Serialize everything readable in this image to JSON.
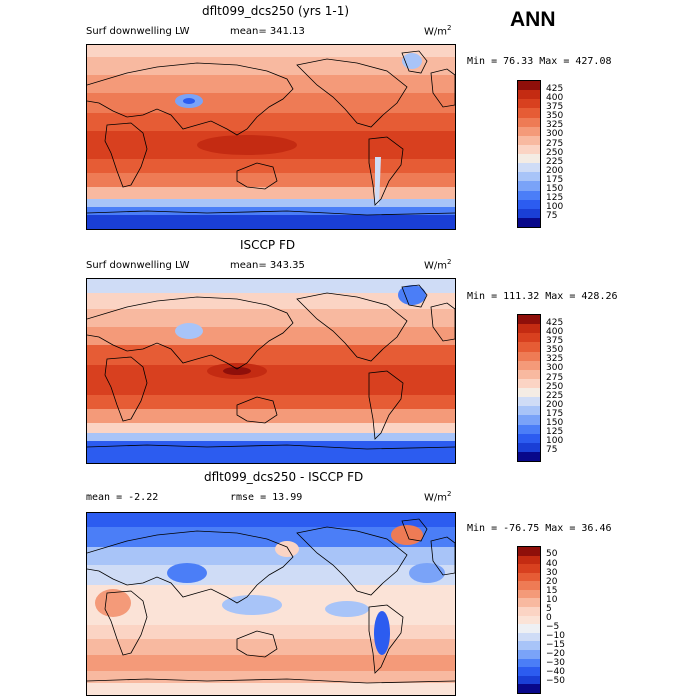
{
  "season": "ANN",
  "colors": {
    "abs_scale": [
      "#08088a",
      "#1a3fd6",
      "#2c5cf0",
      "#4b7ef7",
      "#7aa3f8",
      "#a8c4f8",
      "#cfdcf6",
      "#f4ece4",
      "#fbd4c4",
      "#f8b9a0",
      "#f49a79",
      "#ee7b55",
      "#e65c35",
      "#d8401f",
      "#c42b12",
      "#8f0f0a"
    ],
    "diff_scale": [
      "#08088a",
      "#1a3fd6",
      "#2c5cf0",
      "#4b7ef7",
      "#7aa3f8",
      "#a8c4f8",
      "#cfdcf6",
      "#eef0f4",
      "#fbe3d7",
      "#fbd4c4",
      "#f8b9a0",
      "#f49a79",
      "#ee7b55",
      "#e65c35",
      "#d8401f",
      "#c42b12",
      "#8f0f0a"
    ]
  },
  "panels": [
    {
      "title": "dflt099_dcs250 (yrs 1-1)",
      "left_label": "Surf downwelling LW",
      "middle_label": "mean= 341.13",
      "units": "W/m",
      "units_sup": "2",
      "minmax": "Min =  76.33 Max = 427.08",
      "ticks": [
        "425",
        "400",
        "375",
        "350",
        "325",
        "300",
        "275",
        "250",
        "225",
        "200",
        "175",
        "150",
        "125",
        "100",
        "75"
      ]
    },
    {
      "title": "ISCCP FD",
      "left_label": "Surf downwelling LW",
      "middle_label": "mean= 343.35",
      "units": "W/m",
      "units_sup": "2",
      "minmax": "Min = 111.32 Max = 428.26",
      "ticks": [
        "425",
        "400",
        "375",
        "350",
        "325",
        "300",
        "275",
        "250",
        "225",
        "200",
        "175",
        "150",
        "125",
        "100",
        "75"
      ]
    },
    {
      "title": "dflt099_dcs250 - ISCCP FD",
      "left_label": "mean =  -2.22",
      "middle_label": "rmse =  13.99",
      "units": "W/m",
      "units_sup": "2",
      "minmax": "Min = -76.75 Max =  36.46",
      "ticks": [
        "50",
        "40",
        "30",
        "20",
        "15",
        "10",
        "5",
        "0",
        "−5",
        "−10",
        "−15",
        "−20",
        "−30",
        "−40",
        "−50"
      ]
    }
  ]
}
